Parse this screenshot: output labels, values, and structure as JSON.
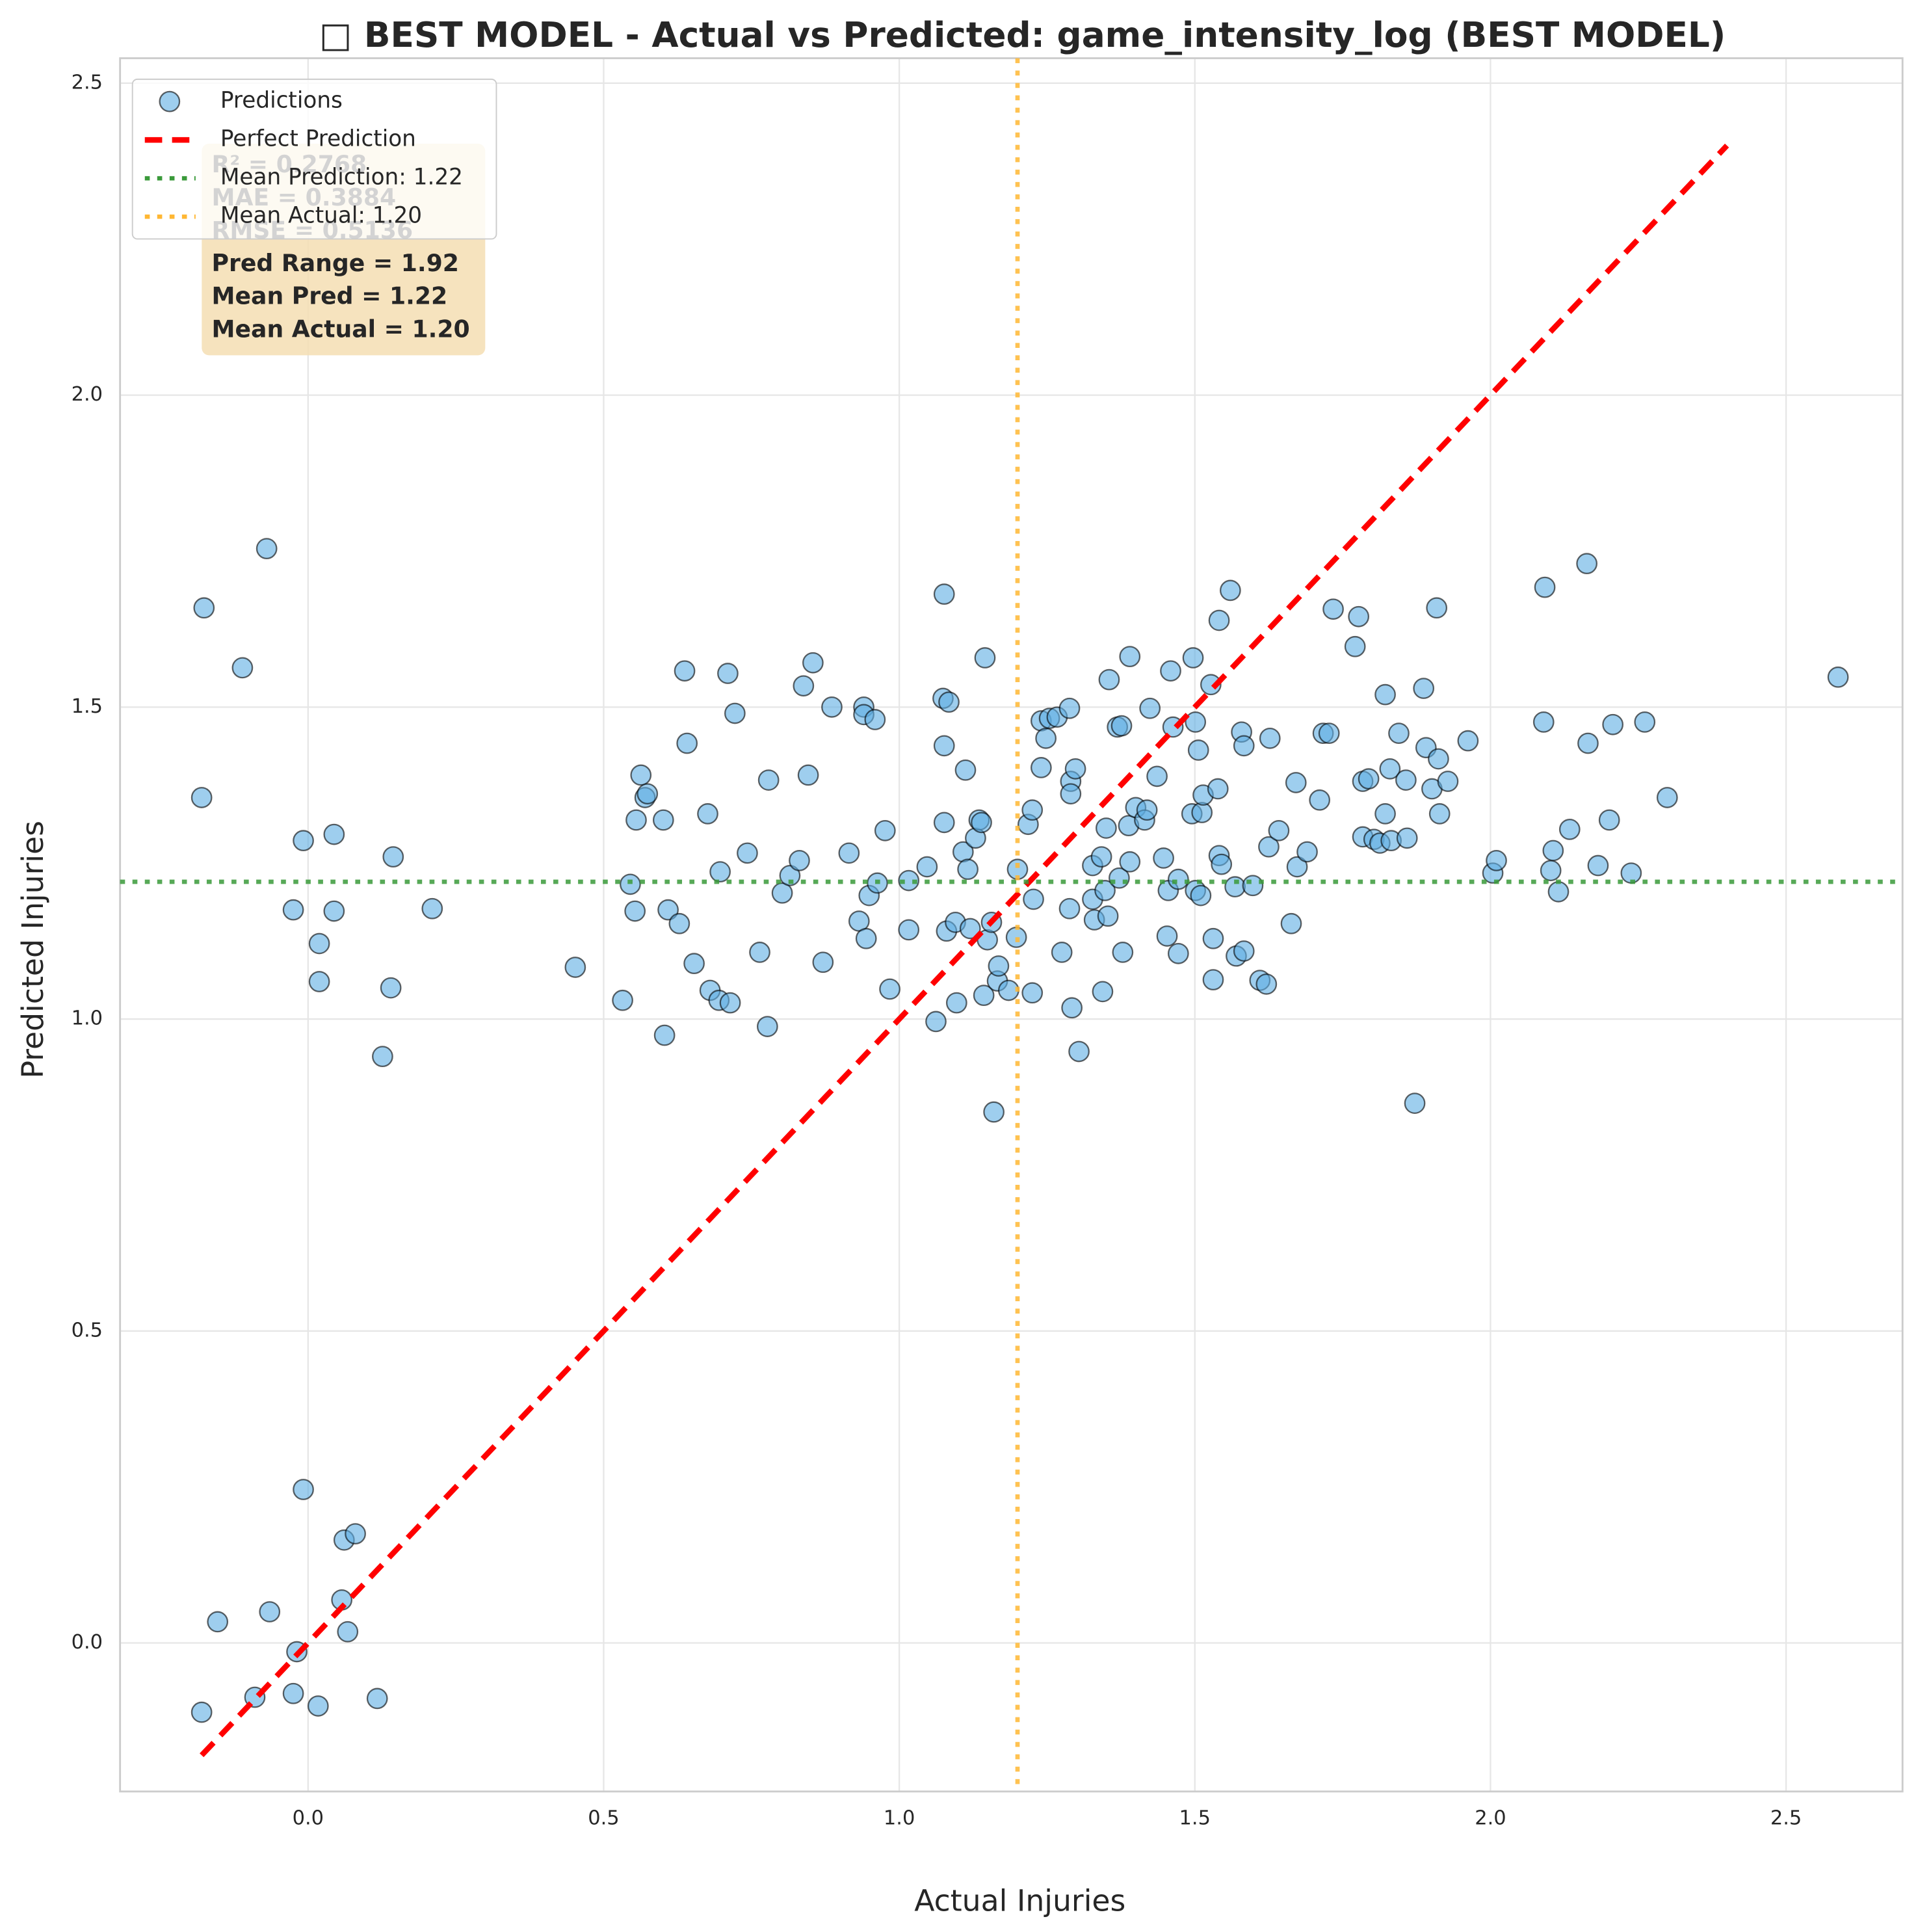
{
  "chart_data": {
    "type": "scatter",
    "title": "□ BEST MODEL - Actual vs Predicted: game_intensity_log (BEST MODEL)",
    "x_label": "Actual Injuries",
    "y_label": "Predicted Injuries",
    "xlim": [
      -0.318,
      2.697
    ],
    "ylim": [
      -0.238,
      2.54
    ],
    "xticks": [
      {
        "value": 0,
        "label": "0.0"
      },
      0.5,
      {
        "value": 1,
        "label": "1.0"
      },
      1.5,
      {
        "value": 2,
        "label": "2.0"
      },
      2.5
    ],
    "yticks": [
      {
        "value": 0,
        "label": "0.0"
      },
      0.5,
      {
        "value": 1,
        "label": "1.0"
      },
      1.5,
      {
        "value": 2,
        "label": "2.0"
      },
      2.5
    ],
    "grid": true,
    "legend": "upper left",
    "series": [
      {
        "name": "Predictions",
        "color": "#5dade2",
        "x": [
          -0.07,
          -0.176,
          -0.111,
          -0.18,
          -0.008,
          0.044,
          0.144,
          -0.025,
          0.044,
          0.21,
          0.019,
          0.019,
          0.14,
          0.126,
          -0.008,
          0.061,
          0.08,
          0.057,
          -0.065,
          -0.153,
          0.067,
          -0.019,
          -0.025,
          -0.09,
          0.117,
          0.017,
          -0.18,
          0.452,
          0.532,
          0.545,
          0.553,
          0.555,
          0.563,
          0.57,
          0.574,
          0.601,
          0.603,
          0.609,
          0.628,
          0.637,
          0.641,
          0.653,
          0.676,
          0.68,
          0.695,
          0.697,
          0.71,
          0.714,
          0.722,
          0.743,
          0.764,
          0.777,
          0.779,
          0.802,
          0.815,
          0.831,
          0.838,
          0.846,
          0.854,
          0.871,
          0.886,
          0.915,
          0.932,
          0.94,
          0.94,
          0.944,
          0.949,
          0.959,
          0.963,
          0.976,
          0.984,
          1.016,
          1.016,
          1.047,
          1.062,
          1.074,
          1.076,
          1.076,
          1.076,
          1.08,
          1.084,
          1.095,
          1.097,
          1.108,
          1.112,
          1.116,
          1.12,
          1.129,
          1.135,
          1.139,
          1.143,
          1.145,
          1.149,
          1.156,
          1.16,
          1.166,
          1.168,
          1.185,
          1.198,
          1.2,
          1.218,
          1.225,
          1.227,
          1.225,
          1.24,
          1.24,
          1.248,
          1.254,
          1.267,
          1.275,
          1.288,
          1.288,
          1.29,
          1.29,
          1.292,
          1.298,
          1.304,
          1.327,
          1.327,
          1.33,
          1.342,
          1.344,
          1.348,
          1.35,
          1.355,
          1.353,
          1.372,
          1.369,
          1.376,
          1.378,
          1.388,
          1.39,
          1.39,
          1.4,
          1.415,
          1.419,
          1.424,
          1.436,
          1.447,
          1.453,
          1.455,
          1.459,
          1.463,
          1.472,
          1.472,
          1.495,
          1.497,
          1.501,
          1.501,
          1.506,
          1.51,
          1.512,
          1.514,
          1.527,
          1.531,
          1.531,
          1.539,
          1.541,
          1.541,
          1.545,
          1.56,
          1.57,
          1.568,
          1.579,
          1.583,
          1.583,
          1.598,
          1.61,
          1.621,
          1.625,
          1.627,
          1.642,
          1.663,
          1.671,
          1.673,
          1.69,
          1.711,
          1.717,
          1.727,
          1.734,
          1.771,
          1.777,
          1.784,
          1.784,
          1.794,
          1.803,
          1.813,
          1.822,
          1.822,
          1.83,
          1.832,
          1.845,
          1.857,
          1.859,
          1.872,
          1.887,
          1.891,
          1.901,
          1.909,
          1.912,
          1.914,
          1.928,
          1.962,
          2.004,
          2.01,
          2.092,
          2.09,
          2.102,
          2.106,
          2.115,
          2.134,
          2.163,
          2.165,
          2.182,
          2.201,
          2.207,
          2.238,
          2.261,
          2.299,
          2.588
        ],
        "values": [
          1.754,
          1.659,
          1.563,
          1.355,
          1.286,
          1.296,
          1.26,
          1.175,
          1.173,
          1.177,
          1.121,
          1.06,
          1.05,
          0.94,
          0.246,
          0.165,
          0.175,
          0.069,
          0.05,
          0.034,
          0.018,
          -0.014,
          -0.081,
          -0.087,
          -0.089,
          -0.101,
          -0.111,
          1.083,
          1.03,
          1.216,
          1.173,
          1.319,
          1.391,
          1.355,
          1.361,
          1.319,
          0.974,
          1.175,
          1.153,
          1.558,
          1.442,
          1.089,
          1.329,
          1.046,
          1.03,
          1.236,
          1.554,
          1.026,
          1.49,
          1.266,
          1.107,
          0.988,
          1.383,
          1.202,
          1.23,
          1.254,
          1.534,
          1.391,
          1.571,
          1.091,
          1.5,
          1.266,
          1.157,
          1.5,
          1.488,
          1.129,
          1.198,
          1.48,
          1.218,
          1.302,
          1.048,
          1.222,
          1.143,
          1.244,
          0.996,
          1.514,
          1.438,
          1.681,
          1.315,
          1.141,
          1.508,
          1.155,
          1.026,
          1.268,
          1.399,
          1.24,
          1.145,
          1.29,
          1.319,
          1.315,
          1.038,
          1.579,
          1.127,
          1.155,
          0.851,
          1.061,
          1.085,
          1.046,
          1.131,
          1.24,
          1.312,
          1.335,
          1.192,
          1.042,
          1.403,
          1.478,
          1.45,
          1.482,
          1.484,
          1.107,
          1.498,
          1.177,
          1.381,
          1.361,
          1.018,
          1.401,
          0.948,
          1.246,
          1.192,
          1.159,
          1.26,
          1.044,
          1.206,
          1.306,
          1.544,
          1.165,
          1.226,
          1.468,
          1.47,
          1.107,
          1.31,
          1.581,
          1.252,
          1.339,
          1.319,
          1.335,
          1.498,
          1.389,
          1.258,
          1.133,
          1.206,
          1.558,
          1.468,
          1.224,
          1.105,
          1.329,
          1.579,
          1.476,
          1.206,
          1.431,
          1.198,
          1.331,
          1.359,
          1.536,
          1.129,
          1.063,
          1.369,
          1.262,
          1.639,
          1.248,
          1.687,
          1.101,
          1.212,
          1.46,
          1.438,
          1.109,
          1.214,
          1.062,
          1.056,
          1.276,
          1.45,
          1.302,
          1.153,
          1.379,
          1.244,
          1.268,
          1.351,
          1.458,
          1.458,
          1.657,
          1.597,
          1.645,
          1.381,
          1.292,
          1.385,
          1.288,
          1.282,
          1.329,
          1.52,
          1.401,
          1.286,
          1.458,
          1.383,
          1.29,
          0.865,
          1.53,
          1.435,
          1.369,
          1.659,
          1.417,
          1.329,
          1.381,
          1.446,
          1.234,
          1.254,
          1.692,
          1.476,
          1.238,
          1.27,
          1.204,
          1.304,
          1.73,
          1.442,
          1.246,
          1.319,
          1.472,
          1.234,
          1.476,
          1.355,
          1.548
        ]
      }
    ],
    "reference_lines": [
      {
        "name": "Perfect Prediction",
        "color": "#ff0000",
        "x": [
          -0.18,
          2.4
        ],
        "values": [
          -0.18,
          2.4
        ]
      },
      {
        "name": "Mean Prediction: 1.22",
        "color": "#3a9a3a",
        "orientation": "horizontal",
        "value": 1.22
      },
      {
        "name": "Mean Actual: 1.20",
        "color": "#ffb733",
        "orientation": "vertical",
        "value": 1.2
      }
    ],
    "stats_box": [
      "R² = 0.2768",
      "MAE = 0.3884",
      "RMSE = 0.5136",
      "Pred Range = 1.92",
      "Mean Pred = 1.22",
      "Mean Actual = 1.20"
    ]
  }
}
